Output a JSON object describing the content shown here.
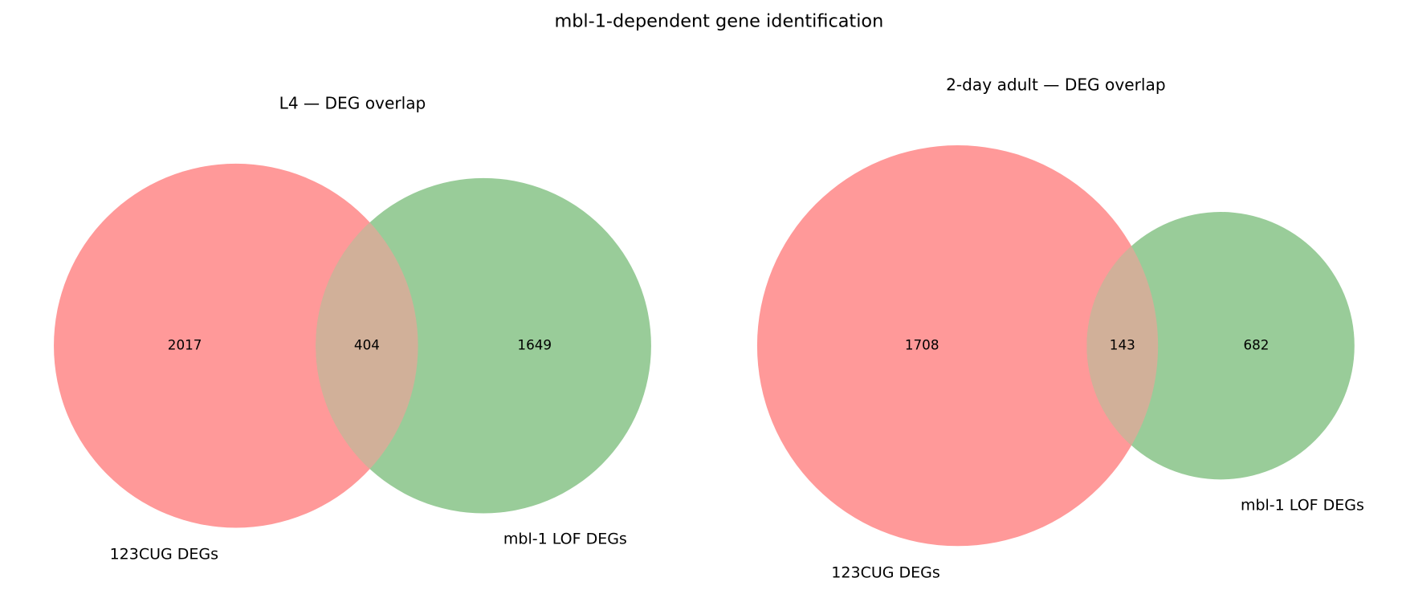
{
  "title": "mbl-1-dependent gene identification",
  "chart_data": [
    {
      "type": "venn",
      "title": "L4 — DEG overlap",
      "sets": [
        {
          "name": "123CUG DEGs",
          "color": "#ff9999"
        },
        {
          "name": "mbl-1 LOF DEGs",
          "color": "#99cc99"
        }
      ],
      "values": [
        2017,
        404,
        1649
      ]
    },
    {
      "type": "venn",
      "title": "2-day adult — DEG overlap",
      "sets": [
        {
          "name": "123CUG DEGs",
          "color": "#ff9999"
        },
        {
          "name": "mbl-1 LOF DEGs",
          "color": "#99cc99"
        }
      ],
      "values": [
        1708,
        143,
        682
      ]
    }
  ]
}
